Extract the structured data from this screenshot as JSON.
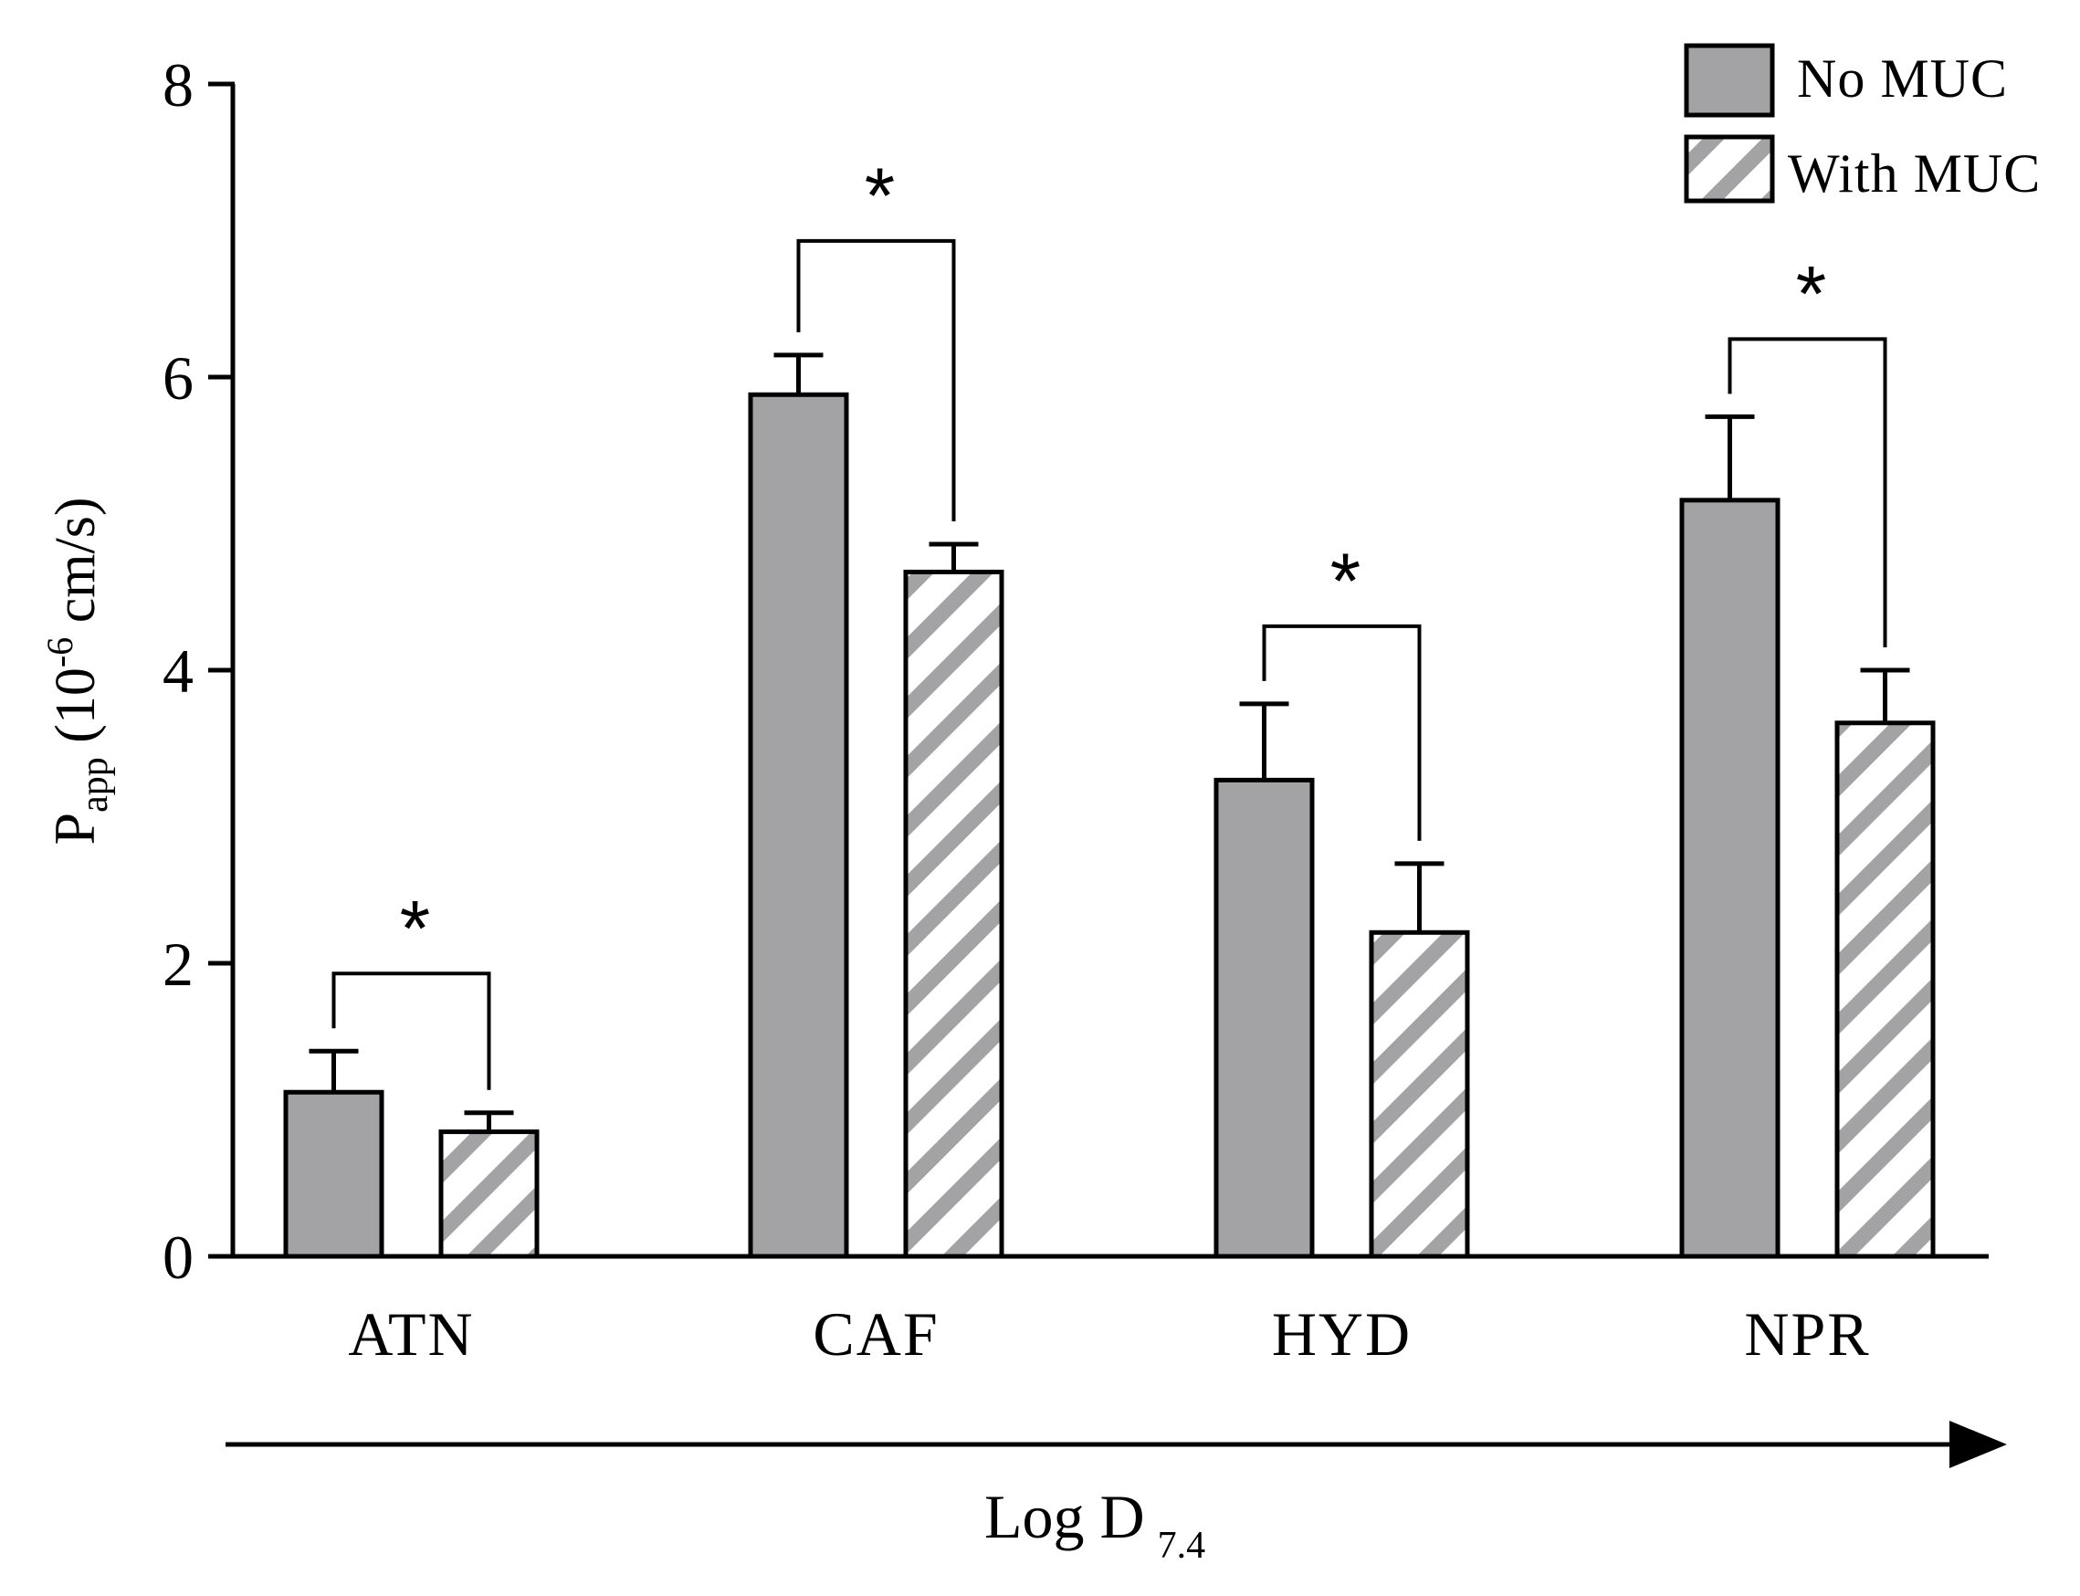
{
  "chart_data": {
    "type": "bar",
    "categories": [
      "ATN",
      "CAF",
      "HYD",
      "NPR"
    ],
    "series": [
      {
        "name": "No MUC",
        "values": [
          1.12,
          5.88,
          3.25,
          5.16
        ],
        "errors": [
          0.28,
          0.27,
          0.52,
          0.57
        ],
        "fill": "#a3a3a6",
        "pattern": "solid"
      },
      {
        "name": "With MUC",
        "values": [
          0.85,
          4.67,
          2.21,
          3.64
        ],
        "errors": [
          0.13,
          0.19,
          0.47,
          0.36
        ],
        "fill": "#ffffff",
        "pattern": "hatched",
        "hatch_color": "#a3a3a6"
      }
    ],
    "significance": [
      {
        "category": "ATN",
        "label": "*"
      },
      {
        "category": "CAF",
        "label": "*"
      },
      {
        "category": "HYD",
        "label": "*"
      },
      {
        "category": "NPR",
        "label": "*"
      }
    ],
    "yticks": [
      0,
      2,
      4,
      6,
      8
    ],
    "ylim": [
      0,
      8
    ],
    "ylabel_main": "P",
    "ylabel_sub": "app",
    "ylabel_unit_open": " (10",
    "ylabel_sup": "-6",
    "ylabel_unit_close": " cm/s)",
    "xlabel_main": "Log D",
    "xlabel_sub": "7.4",
    "legend_position": "top-right",
    "title": ""
  }
}
